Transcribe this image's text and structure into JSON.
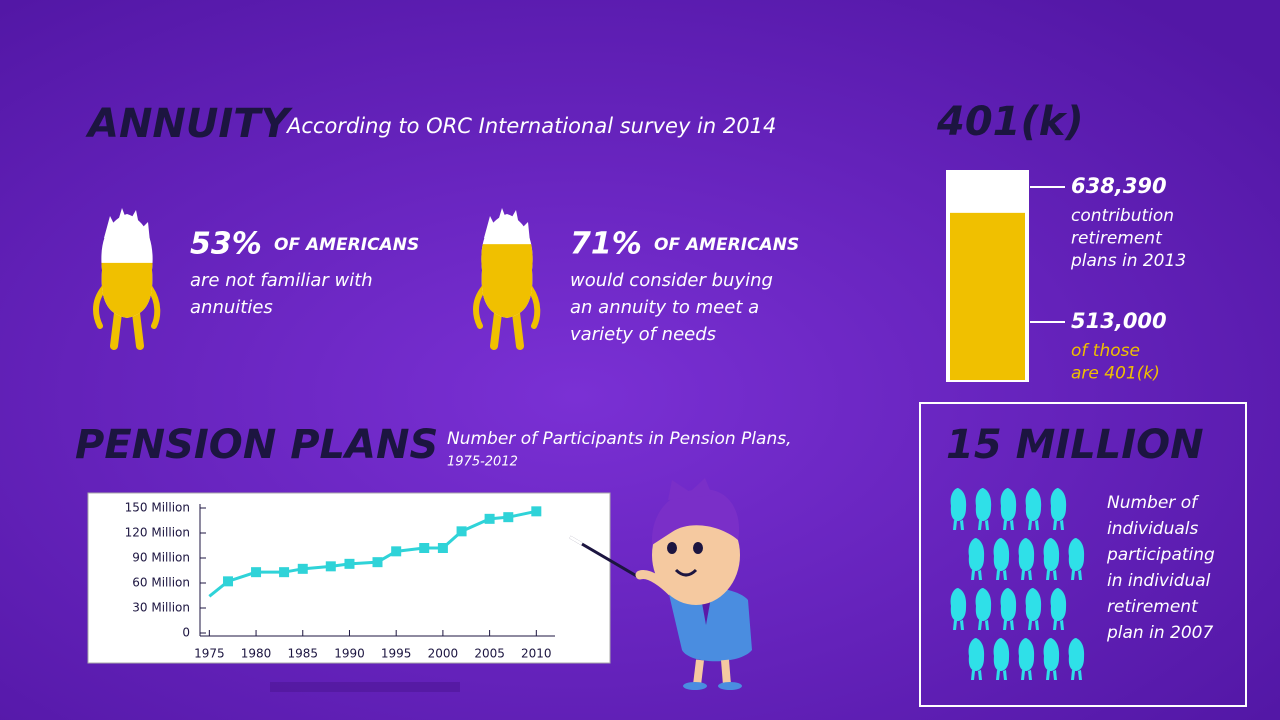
{
  "annuity": {
    "title": "ANNUITY",
    "subtitle": "According to ORC International survey in 2014",
    "stats": [
      {
        "value": 53,
        "label": "53%",
        "headline": "OF AMERICANS",
        "lines": [
          "are not familiar with",
          "annuities"
        ]
      },
      {
        "value": 71,
        "label": "71%",
        "headline": "OF AMERICANS",
        "lines": [
          "would consider buying",
          "an annuity to meet a",
          "variety of needs"
        ]
      }
    ]
  },
  "k401": {
    "title": "401(k)",
    "total": {
      "value": 638390,
      "label": "638,390",
      "lines": [
        "contribution",
        "retirement",
        "plans in 2013"
      ]
    },
    "part": {
      "value": 513000,
      "label": "513,000",
      "lines": [
        "of those",
        "are 401(k)"
      ]
    }
  },
  "pension": {
    "title": "PENSION PLANS"
  },
  "chart_data": {
    "type": "line",
    "title": "Number of Participants in Pension Plans,",
    "subtitle": "1975-2012",
    "x": [
      1975,
      1977,
      1980,
      1983,
      1985,
      1988,
      1990,
      1993,
      1995,
      1998,
      2000,
      2002,
      2005,
      2007,
      2010
    ],
    "series": [
      {
        "name": "Participants",
        "color": "#2fd3d8",
        "values": [
          44,
          62,
          73,
          73,
          77,
          80,
          83,
          85,
          98,
          102,
          102,
          122,
          137,
          139,
          146
        ]
      }
    ],
    "xlim": [
      1974,
      2012
    ],
    "xticks": [
      1975,
      1980,
      1985,
      1990,
      1995,
      2000,
      2005,
      2010
    ],
    "ylim": [
      0,
      150
    ],
    "yticks": [
      0,
      {
        "value": 30,
        "label": "30 Million"
      },
      {
        "value": 60,
        "label": "60 Million"
      },
      {
        "value": 90,
        "label": "90 Million"
      },
      {
        "value": 120,
        "label": "120 Million"
      },
      {
        "value": 150,
        "label": "150 Million"
      }
    ]
  },
  "ira": {
    "title": "15 MILLION",
    "lines": [
      "Number of",
      "individuals",
      "participating",
      "in individual",
      "retirement",
      "plan in 2007"
    ]
  }
}
